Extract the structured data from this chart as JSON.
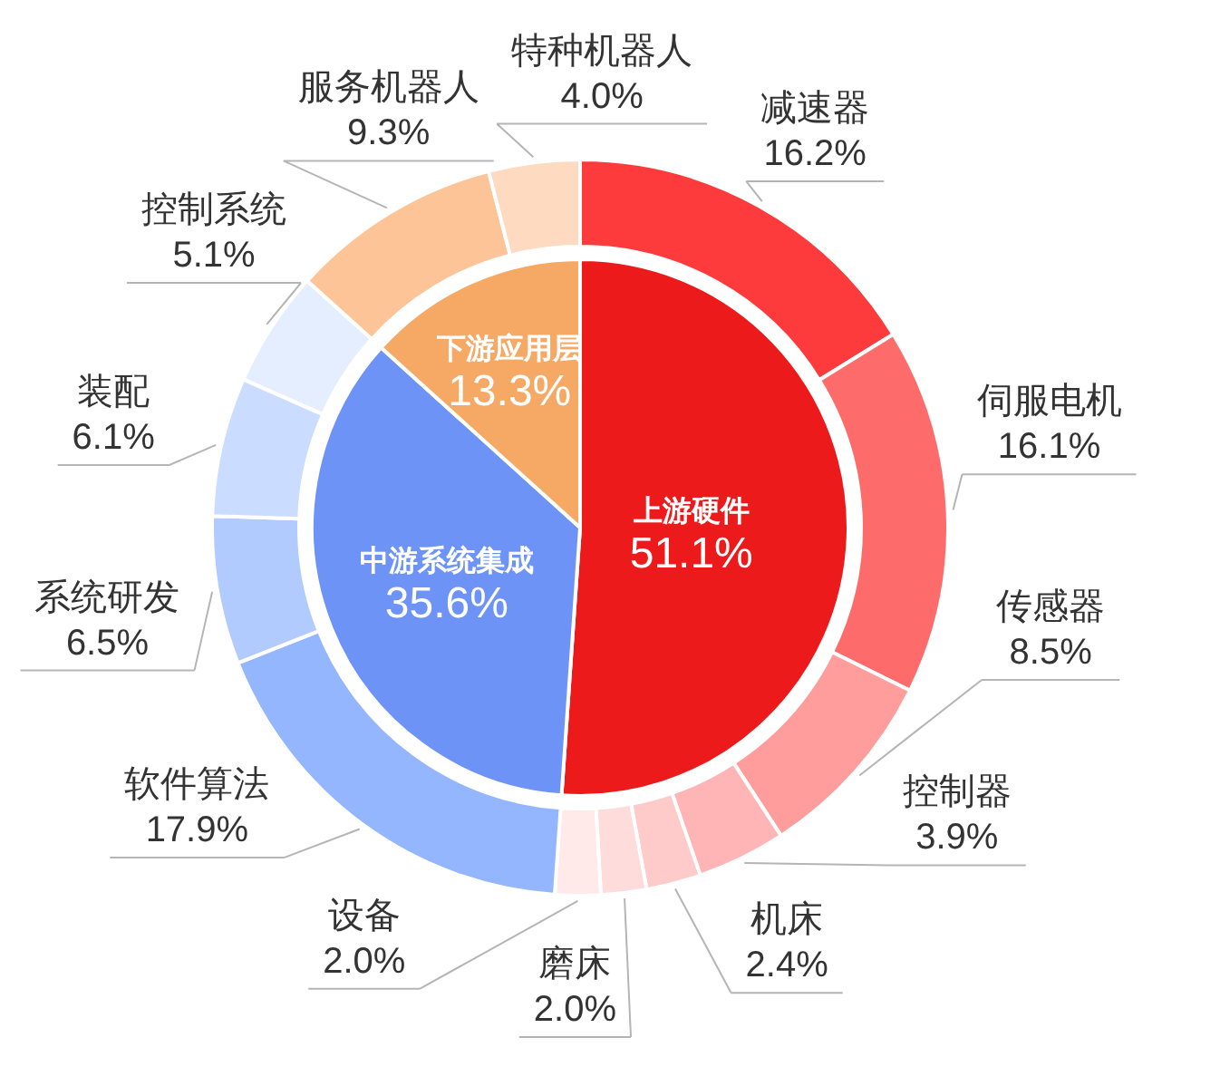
{
  "chart_data": [
    {
      "type": "pie",
      "categories": [
        "上游硬件",
        "中游系统集成",
        "下游应用层"
      ],
      "values": [
        51.1,
        35.6,
        13.3
      ],
      "value_labels": [
        "51.1%",
        "35.6%",
        "13.3%"
      ],
      "colors": [
        "#ec1a1a",
        "#6e93f7",
        "#f5a965"
      ]
    },
    {
      "type": "donut",
      "categories": [
        "减速器",
        "伺服电机",
        "传感器",
        "控制器",
        "机床",
        "磨床",
        "设备",
        "软件算法",
        "系统研发",
        "装配",
        "控制系统",
        "服务机器人",
        "特种机器人"
      ],
      "values": [
        16.2,
        16.1,
        8.5,
        3.9,
        2.4,
        2.0,
        2.0,
        17.9,
        6.5,
        6.1,
        5.1,
        9.3,
        4.0
      ],
      "value_labels": [
        "16.2%",
        "16.1%",
        "8.5%",
        "3.9%",
        "2.4%",
        "2.0%",
        "2.0%",
        "17.9%",
        "6.5%",
        "6.1%",
        "5.1%",
        "9.3%",
        "4.0%"
      ],
      "colors": [
        "#fe3b3c",
        "#fe6b6b",
        "#ff9c9c",
        "#ffb5b5",
        "#ffcaca",
        "#ffdcdc",
        "#ffe9e9",
        "#94b6ff",
        "#b1cbff",
        "#cadcff",
        "#e4eeff",
        "#fdc597",
        "#fedac0"
      ]
    }
  ]
}
